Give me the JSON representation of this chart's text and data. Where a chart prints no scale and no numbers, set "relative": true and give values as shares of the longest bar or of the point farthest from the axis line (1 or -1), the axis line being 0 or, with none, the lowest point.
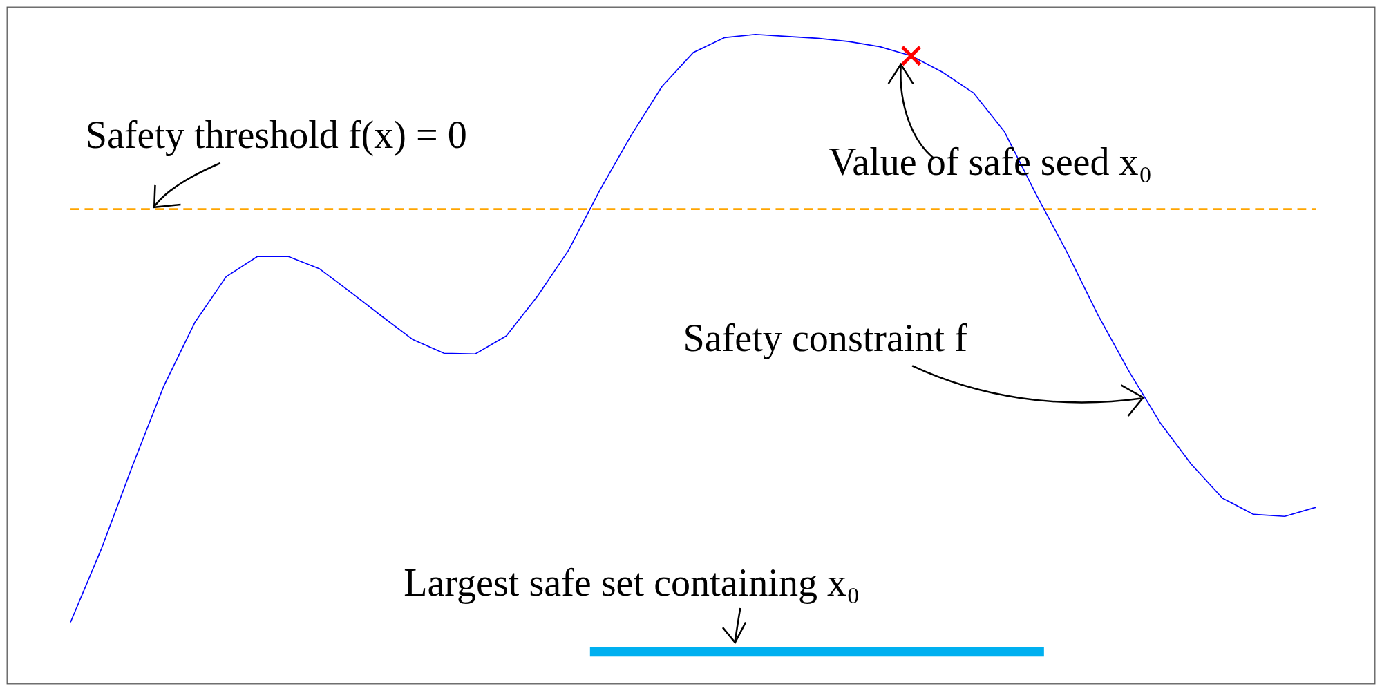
{
  "chart_data": {
    "type": "line",
    "relative": true,
    "categories": [
      null,
      null,
      null,
      null,
      null,
      null,
      null,
      null,
      null,
      null,
      null,
      null,
      null,
      null,
      null,
      null,
      null,
      null,
      null,
      null,
      null,
      null,
      null,
      null,
      null,
      null,
      null,
      null,
      null,
      null,
      null,
      null,
      null,
      null,
      null,
      null,
      null,
      null,
      null,
      null,
      null
    ],
    "series": [
      {
        "color": "#0000ff",
        "values": [
          0.095,
          0.209,
          0.337,
          0.459,
          0.557,
          0.627,
          0.658,
          0.658,
          0.639,
          0.603,
          0.566,
          0.53,
          0.509,
          0.508,
          0.536,
          0.597,
          0.668,
          0.76,
          0.844,
          0.92,
          0.972,
          0.995,
          1.0,
          0.997,
          0.994,
          0.989,
          0.981,
          0.967,
          0.942,
          0.91,
          0.85,
          0.755,
          0.665,
          0.568,
          0.481,
          0.402,
          0.338,
          0.286,
          0.261,
          0.258,
          0.272
        ]
      }
    ],
    "ref_lines": [
      {
        "axis": "y",
        "value": 0.731,
        "color": "#ffa500",
        "line_style": "dashed"
      }
    ],
    "annotations": [
      "Safety threshold f(x) = 0",
      "Value of safe seed x₀",
      "Safety constraint f",
      "Largest safe set containing x₀"
    ]
  }
}
